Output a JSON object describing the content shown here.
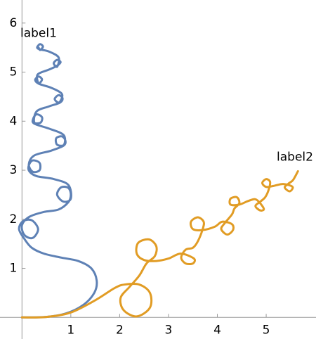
{
  "chart_data": {
    "type": "line",
    "xlim": [
      -0.45,
      6.02
    ],
    "ylim": [
      -0.44,
      6.47
    ],
    "xticks": [
      1,
      2,
      3,
      4,
      5
    ],
    "yticks": [
      1,
      2,
      3,
      4,
      5,
      6
    ],
    "series": [
      {
        "name": "label1",
        "color": "#5e81b5",
        "x": [
          0,
          0.5,
          0.9,
          1.25,
          1.48,
          1.53,
          1.42,
          1.15,
          0.8,
          0.45,
          0.2,
          0.05,
          -0.06,
          0.02,
          0.2,
          0.33,
          0.22,
          0.05,
          0.0,
          0.15,
          0.45,
          0.75,
          0.95,
          1.0,
          0.95,
          0.8,
          0.72,
          0.85,
          1.0,
          0.95,
          0.65,
          0.3,
          0.15,
          0.14,
          0.22,
          0.36,
          0.36,
          0.22,
          0.14,
          0.25,
          0.6,
          0.85,
          0.89,
          0.82,
          0.7,
          0.72,
          0.86,
          0.85,
          0.55,
          0.25,
          0.23,
          0.3,
          0.41,
          0.38,
          0.25,
          0.3,
          0.55,
          0.78,
          0.83,
          0.75,
          0.67,
          0.76,
          0.82,
          0.6,
          0.35,
          0.27,
          0.34,
          0.41,
          0.34,
          0.32,
          0.55,
          0.7,
          0.79,
          0.72,
          0.65,
          0.72,
          0.75,
          0.55,
          0.38,
          0.31,
          0.37,
          0.43,
          0.37,
          0.34
        ],
        "values": [
          0,
          0.01,
          0.08,
          0.25,
          0.5,
          0.75,
          1.0,
          1.15,
          1.22,
          1.3,
          1.42,
          1.6,
          1.8,
          1.96,
          1.98,
          1.8,
          1.62,
          1.68,
          1.88,
          2.05,
          2.15,
          2.2,
          2.35,
          2.5,
          2.64,
          2.65,
          2.5,
          2.36,
          2.42,
          2.7,
          2.82,
          2.88,
          2.98,
          3.1,
          3.2,
          3.15,
          3.0,
          2.97,
          3.12,
          3.3,
          3.4,
          3.5,
          3.6,
          3.69,
          3.65,
          3.52,
          3.52,
          3.72,
          3.85,
          3.95,
          4.05,
          4.14,
          4.08,
          3.97,
          3.98,
          4.2,
          4.3,
          4.38,
          4.47,
          4.53,
          4.45,
          4.38,
          4.55,
          4.68,
          4.76,
          4.84,
          4.91,
          4.85,
          4.77,
          4.95,
          5.05,
          5.12,
          5.2,
          5.25,
          5.18,
          5.11,
          5.3,
          5.42,
          5.46,
          5.5,
          5.57,
          5.52,
          5.45,
          5.5
        ]
      },
      {
        "name": "label2",
        "color": "#e19c24",
        "x": [
          0,
          0.5,
          1,
          1.5,
          1.9,
          2.1,
          2.4,
          2.62,
          2.62,
          2.35,
          2.08,
          2.02,
          2.2,
          2.4,
          2.55,
          2.72,
          2.75,
          2.6,
          2.38,
          2.35,
          2.5,
          2.75,
          3.0,
          3.25,
          3.52,
          3.5,
          3.35,
          3.26,
          3.35,
          3.5,
          3.6,
          3.7,
          3.72,
          3.6,
          3.46,
          3.5,
          3.7,
          3.95,
          4.1,
          4.3,
          4.32,
          4.2,
          4.08,
          4.15,
          4.3,
          4.35,
          4.45,
          4.4,
          4.27,
          4.27,
          4.45,
          4.65,
          4.8,
          4.95,
          4.88,
          4.78,
          4.88,
          4.98,
          5.05,
          5.08,
          5.0,
          4.92,
          5.0,
          5.15,
          5.35,
          5.54,
          5.48,
          5.38,
          5.46,
          5.55,
          5.65
        ],
        "values": [
          0,
          0.01,
          0.1,
          0.35,
          0.6,
          0.67,
          0.67,
          0.5,
          0.2,
          0.02,
          0.15,
          0.4,
          0.62,
          0.85,
          1.1,
          1.25,
          1.45,
          1.59,
          1.52,
          1.3,
          1.17,
          1.15,
          1.2,
          1.3,
          1.2,
          1.1,
          1.1,
          1.22,
          1.38,
          1.42,
          1.55,
          1.8,
          1.95,
          2.04,
          1.95,
          1.8,
          1.78,
          1.85,
          1.95,
          1.9,
          1.78,
          1.69,
          1.8,
          1.92,
          2.1,
          2.22,
          2.33,
          2.45,
          2.42,
          2.3,
          2.3,
          2.38,
          2.4,
          2.22,
          2.18,
          2.27,
          2.36,
          2.45,
          2.6,
          2.76,
          2.82,
          2.74,
          2.66,
          2.68,
          2.72,
          2.66,
          2.57,
          2.65,
          2.73,
          2.8,
          2.98
        ]
      }
    ]
  }
}
